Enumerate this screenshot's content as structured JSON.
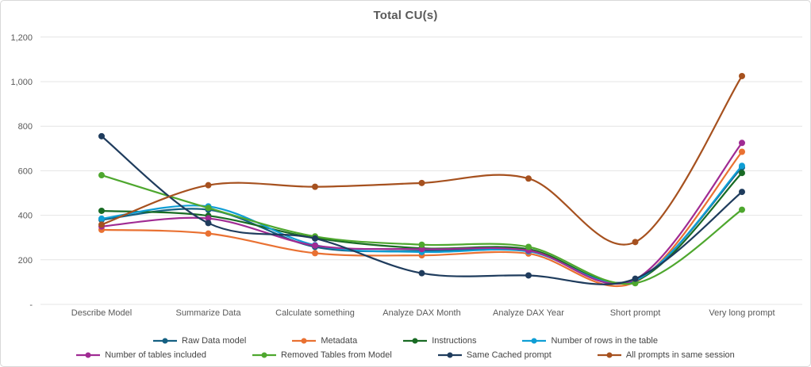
{
  "title": "Total CU(s)",
  "chart_data": {
    "type": "line",
    "title": "Total CU(s)",
    "line_style": "smooth",
    "markers": true,
    "grid": "horizontal",
    "legend_position": "bottom",
    "ylim": [
      0,
      1200
    ],
    "y_tick_step": 200,
    "y_ticks": [
      "-",
      "200",
      "400",
      "600",
      "800",
      "1,000",
      "1,200"
    ],
    "categories": [
      "Describe Model",
      "Summarize Data",
      "Calculate something",
      "Analyze DAX Month",
      "Analyze DAX Year",
      "Short prompt",
      "Very long prompt"
    ],
    "series": [
      {
        "name": "Raw Data model",
        "color": "#156082",
        "values": [
          380,
          425,
          258,
          240,
          243,
          110,
          615
        ]
      },
      {
        "name": "Metadata",
        "color": "#E97132",
        "values": [
          335,
          318,
          230,
          220,
          228,
          100,
          685
        ]
      },
      {
        "name": "Instructions",
        "color": "#196B24",
        "values": [
          420,
          398,
          298,
          252,
          248,
          105,
          590
        ]
      },
      {
        "name": "Number of rows in the table",
        "color": "#0F9ED5",
        "values": [
          385,
          440,
          266,
          235,
          238,
          108,
          622
        ]
      },
      {
        "name": "Number of tables included",
        "color": "#A02B93",
        "values": [
          350,
          386,
          264,
          248,
          242,
          112,
          725
        ]
      },
      {
        "name": "Removed Tables from Model",
        "color": "#4EA72E",
        "values": [
          580,
          433,
          305,
          268,
          258,
          95,
          425
        ]
      },
      {
        "name": "Same Cached prompt",
        "color": "#1F3C5D",
        "values": [
          755,
          365,
          296,
          140,
          130,
          115,
          505
        ]
      },
      {
        "name": "All prompts in same session",
        "color": "#A6511F",
        "values": [
          358,
          535,
          528,
          545,
          565,
          280,
          1025
        ]
      }
    ],
    "colors": {
      "gridline": "#e4e4e4",
      "axis_text": "#595959",
      "title_text": "#595959",
      "legend_text": "#444444",
      "background": "#ffffff",
      "frame_border": "#d8d8d8"
    }
  }
}
